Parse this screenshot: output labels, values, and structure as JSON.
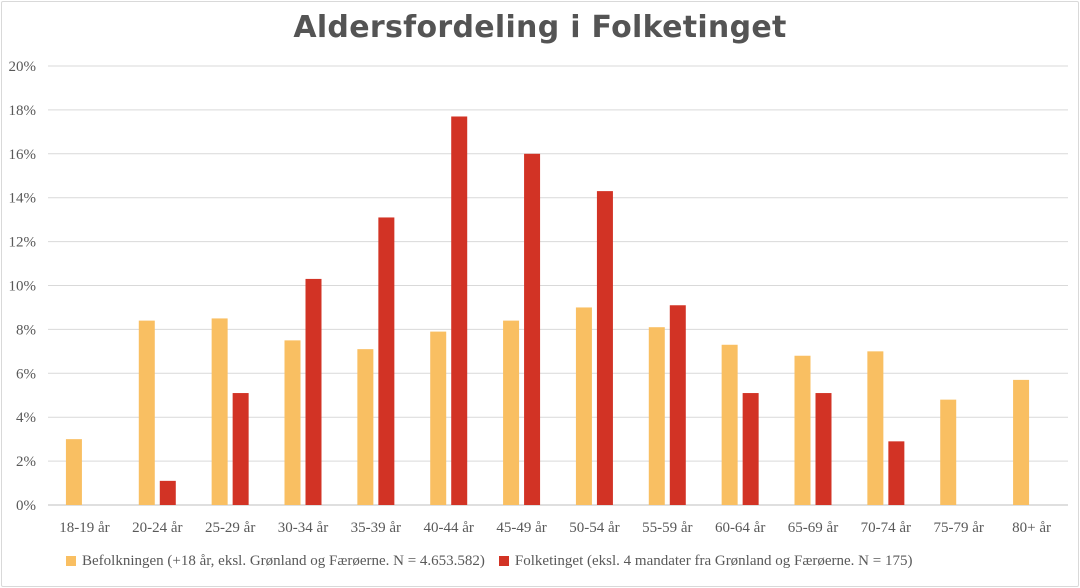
{
  "chart_data": {
    "type": "bar",
    "title": "Aldersfordeling  i Folketinget",
    "categories": [
      "18-19 år",
      "20-24 år",
      "25-29 år",
      "30-34 år",
      "35-39 år",
      "40-44 år",
      "45-49 år",
      "50-54 år",
      "55-59 år",
      "60-64 år",
      "65-69 år",
      "70-74 år",
      "75-79 år",
      "80+ år"
    ],
    "series": [
      {
        "name": "Befolkningen (+18 år, eksl. Grønland og Færøerne. N = 4.653.582)",
        "color": "#f9bf62",
        "values": [
          3.0,
          8.4,
          8.5,
          7.5,
          7.1,
          7.9,
          8.4,
          9.0,
          8.1,
          7.3,
          6.8,
          7.0,
          4.8,
          5.7
        ]
      },
      {
        "name": "Folketinget (eksl. 4 mandater fra Grønland og Færøerne. N = 175)",
        "color": "#d23325",
        "values": [
          0,
          1.1,
          5.1,
          10.3,
          13.1,
          17.7,
          16.0,
          14.3,
          9.1,
          5.1,
          5.1,
          2.9,
          0,
          0
        ]
      }
    ],
    "ylim": [
      0,
      20
    ],
    "yticks": [
      0,
      2,
      4,
      6,
      8,
      10,
      12,
      14,
      16,
      18,
      20
    ],
    "y_tick_suffix": "%",
    "grid": true,
    "legend_position": "bottom"
  }
}
